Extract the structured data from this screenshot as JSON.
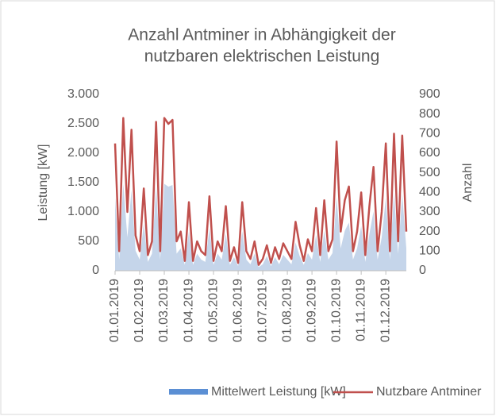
{
  "chart_data": {
    "type": "area-line",
    "title": [
      "Anzahl Antminer in Abhängigkeit der",
      "nutzbaren elektrischen Leistung"
    ],
    "ylabel": "Leistung [kW]",
    "y2label": "Anzahl",
    "categories": [
      "01.01.2019",
      null,
      null,
      null,
      null,
      null,
      "01.02.2019",
      null,
      null,
      null,
      null,
      null,
      "01.03.2019",
      null,
      null,
      null,
      null,
      null,
      "01.04.2019",
      null,
      null,
      null,
      null,
      null,
      "01.05.2019",
      null,
      null,
      null,
      null,
      null,
      "01.06.2019",
      null,
      null,
      null,
      null,
      null,
      "01.07.2019",
      null,
      null,
      null,
      null,
      null,
      "01.08.2019",
      null,
      null,
      null,
      null,
      null,
      "01.09.2019",
      null,
      null,
      null,
      null,
      null,
      "01.10.2019",
      null,
      null,
      null,
      null,
      null,
      "01.11.2019",
      null,
      null,
      null,
      null,
      null,
      "01.12.2019",
      null,
      null,
      null,
      null,
      null
    ],
    "series": [
      {
        "name": "Mittelwert Leistung [kW]",
        "color": "#c5d5ea",
        "legend_color": "#5b8fd4",
        "axis": "y",
        "values": [
          1240,
          190,
          1480,
          570,
          1370,
          340,
          190,
          800,
          150,
          290,
          1440,
          190,
          1480,
          1430,
          1460,
          290,
          380,
          100,
          670,
          100,
          290,
          190,
          150,
          720,
          100,
          290,
          190,
          630,
          100,
          230,
          80,
          670,
          190,
          110,
          290,
          60,
          110,
          250,
          80,
          230,
          110,
          270,
          190,
          110,
          480,
          250,
          100,
          300,
          190,
          610,
          150,
          680,
          190,
          300,
          1250,
          380,
          680,
          820,
          190,
          380,
          760,
          150,
          630,
          1010,
          190,
          570,
          1240,
          190,
          1330,
          290,
          1310,
          380
        ]
      },
      {
        "name": "Nutzbare Antminer",
        "color": "#c0504d",
        "axis": "y2",
        "values": [
          650,
          100,
          780,
          300,
          720,
          180,
          100,
          420,
          80,
          150,
          760,
          100,
          780,
          750,
          770,
          150,
          200,
          50,
          350,
          50,
          150,
          100,
          80,
          380,
          50,
          150,
          100,
          330,
          50,
          120,
          40,
          350,
          100,
          60,
          150,
          30,
          60,
          130,
          40,
          120,
          60,
          140,
          100,
          60,
          250,
          130,
          50,
          160,
          100,
          320,
          80,
          360,
          100,
          160,
          660,
          200,
          360,
          430,
          100,
          200,
          400,
          80,
          330,
          530,
          100,
          300,
          650,
          100,
          700,
          150,
          690,
          200
        ]
      }
    ],
    "ylim": [
      0,
      3000
    ],
    "yticks": [
      0,
      500,
      {
        "value": 1000,
        "label": "1.000"
      },
      {
        "value": 1500,
        "label": "1.500"
      },
      {
        "value": 2000,
        "label": "2.000"
      },
      {
        "value": 2500,
        "label": "2.500"
      },
      {
        "value": 3000,
        "label": "3.000"
      }
    ],
    "y2lim": [
      0,
      900
    ],
    "y2ticks": [
      0,
      100,
      200,
      300,
      400,
      500,
      600,
      700,
      800,
      900
    ],
    "legend": "bottom"
  }
}
